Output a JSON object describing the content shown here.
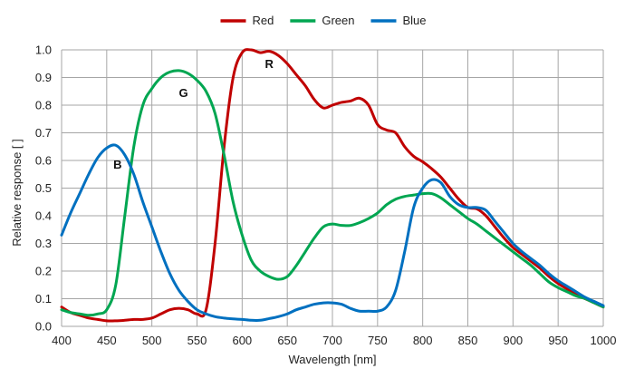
{
  "chart_data": {
    "type": "line",
    "title": "",
    "xlabel": "Wavelength [nm]",
    "ylabel": "Relative response [ ]",
    "xlim": [
      400,
      1000
    ],
    "ylim": [
      0.0,
      1.0
    ],
    "x_ticks": [
      "400",
      "450",
      "500",
      "550",
      "600",
      "650",
      "700",
      "750",
      "800",
      "850",
      "900",
      "950",
      "1000"
    ],
    "y_ticks": [
      "0.0",
      "0.1",
      "0.2",
      "0.3",
      "0.4",
      "0.5",
      "0.6",
      "0.7",
      "0.8",
      "0.9",
      "1.0"
    ],
    "grid": true,
    "legend_position": "top-center",
    "series": [
      {
        "name": "Red",
        "color": "#c00000",
        "x": [
          400,
          410,
          420,
          430,
          440,
          450,
          460,
          470,
          480,
          490,
          500,
          510,
          520,
          530,
          540,
          550,
          560,
          570,
          580,
          590,
          600,
          610,
          620,
          630,
          640,
          650,
          660,
          670,
          680,
          690,
          700,
          710,
          720,
          730,
          740,
          750,
          760,
          770,
          780,
          790,
          800,
          810,
          820,
          830,
          840,
          850,
          860,
          870,
          880,
          890,
          900,
          910,
          920,
          930,
          940,
          950,
          960,
          970,
          980,
          990,
          1000
        ],
        "y": [
          0.07,
          0.05,
          0.04,
          0.03,
          0.025,
          0.02,
          0.02,
          0.022,
          0.025,
          0.025,
          0.03,
          0.045,
          0.06,
          0.065,
          0.06,
          0.045,
          0.06,
          0.3,
          0.65,
          0.9,
          0.99,
          1.0,
          0.99,
          0.995,
          0.98,
          0.95,
          0.91,
          0.87,
          0.82,
          0.79,
          0.8,
          0.81,
          0.815,
          0.825,
          0.8,
          0.73,
          0.71,
          0.7,
          0.65,
          0.615,
          0.595,
          0.57,
          0.54,
          0.5,
          0.46,
          0.43,
          0.425,
          0.4,
          0.36,
          0.32,
          0.285,
          0.26,
          0.235,
          0.21,
          0.18,
          0.155,
          0.135,
          0.115,
          0.1,
          0.085,
          0.07
        ]
      },
      {
        "name": "Green",
        "color": "#00a651",
        "x": [
          400,
          410,
          420,
          430,
          440,
          450,
          460,
          470,
          480,
          490,
          500,
          510,
          520,
          530,
          540,
          550,
          560,
          570,
          580,
          590,
          600,
          610,
          620,
          630,
          640,
          650,
          660,
          670,
          680,
          690,
          700,
          710,
          720,
          730,
          740,
          750,
          760,
          770,
          780,
          790,
          800,
          810,
          820,
          830,
          840,
          850,
          860,
          870,
          880,
          890,
          900,
          910,
          920,
          930,
          940,
          950,
          960,
          970,
          980,
          990,
          1000
        ],
        "y": [
          0.06,
          0.05,
          0.045,
          0.04,
          0.045,
          0.06,
          0.15,
          0.4,
          0.65,
          0.8,
          0.86,
          0.9,
          0.92,
          0.925,
          0.915,
          0.89,
          0.85,
          0.77,
          0.62,
          0.45,
          0.33,
          0.24,
          0.2,
          0.18,
          0.17,
          0.18,
          0.22,
          0.27,
          0.32,
          0.36,
          0.37,
          0.365,
          0.365,
          0.375,
          0.39,
          0.41,
          0.44,
          0.46,
          0.47,
          0.475,
          0.48,
          0.48,
          0.465,
          0.44,
          0.415,
          0.39,
          0.37,
          0.345,
          0.32,
          0.295,
          0.27,
          0.245,
          0.22,
          0.19,
          0.16,
          0.14,
          0.125,
          0.11,
          0.1,
          0.085,
          0.07
        ]
      },
      {
        "name": "Blue",
        "color": "#0070c0",
        "x": [
          400,
          410,
          420,
          430,
          440,
          450,
          460,
          470,
          480,
          490,
          500,
          510,
          520,
          530,
          540,
          550,
          560,
          570,
          580,
          590,
          600,
          610,
          620,
          630,
          640,
          650,
          660,
          670,
          680,
          690,
          700,
          710,
          720,
          730,
          740,
          750,
          760,
          770,
          780,
          790,
          800,
          810,
          820,
          830,
          840,
          850,
          860,
          870,
          880,
          890,
          900,
          910,
          920,
          930,
          940,
          950,
          960,
          970,
          980,
          990,
          1000
        ],
        "y": [
          0.33,
          0.41,
          0.48,
          0.55,
          0.61,
          0.645,
          0.655,
          0.62,
          0.55,
          0.45,
          0.36,
          0.27,
          0.19,
          0.13,
          0.09,
          0.06,
          0.045,
          0.035,
          0.03,
          0.027,
          0.025,
          0.022,
          0.022,
          0.028,
          0.035,
          0.045,
          0.06,
          0.07,
          0.08,
          0.085,
          0.085,
          0.08,
          0.065,
          0.055,
          0.055,
          0.055,
          0.07,
          0.13,
          0.27,
          0.43,
          0.5,
          0.53,
          0.52,
          0.47,
          0.44,
          0.43,
          0.43,
          0.42,
          0.38,
          0.34,
          0.3,
          0.27,
          0.245,
          0.22,
          0.19,
          0.165,
          0.145,
          0.125,
          0.105,
          0.09,
          0.075
        ]
      }
    ],
    "annotations": [
      {
        "text": "R",
        "x": 630,
        "y": 0.935
      },
      {
        "text": "G",
        "x": 535,
        "y": 0.83
      },
      {
        "text": "B",
        "x": 462,
        "y": 0.57
      }
    ]
  }
}
